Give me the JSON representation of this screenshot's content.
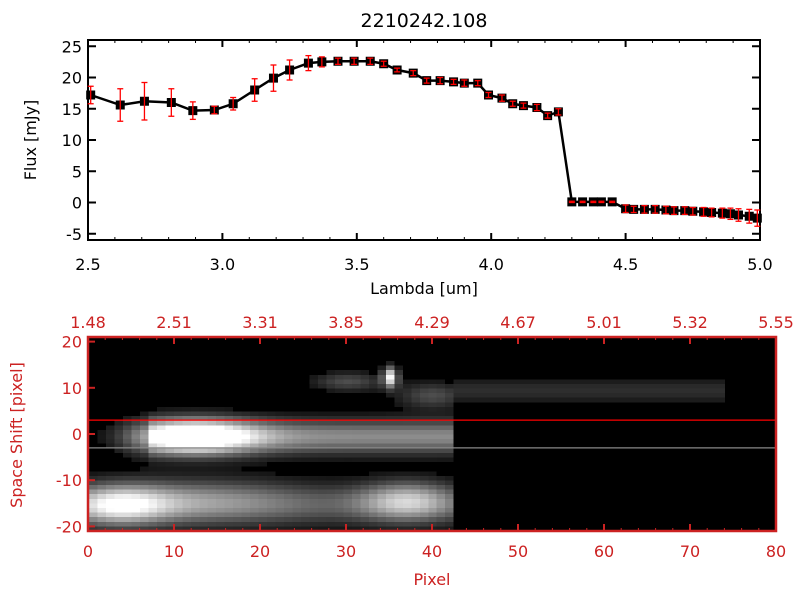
{
  "chart_data": [
    {
      "type": "line",
      "title": "2210242.108",
      "xlabel": "Lambda [um]",
      "ylabel": "Flux [mJy]",
      "xlim": [
        2.5,
        5.0
      ],
      "ylim": [
        -6,
        26
      ],
      "xticks": [
        "2.5",
        "3.0",
        "3.5",
        "4.0",
        "4.5",
        "5.0"
      ],
      "xtick_values": [
        2.5,
        3.0,
        3.5,
        4.0,
        4.5,
        5.0
      ],
      "yticks": [
        "-5",
        "0",
        "5",
        "10",
        "15",
        "20",
        "25"
      ],
      "ytick_values": [
        -5,
        0,
        5,
        10,
        15,
        20,
        25
      ],
      "line_color": "#000000",
      "error_color": "#ff0000",
      "x": [
        2.51,
        2.62,
        2.71,
        2.81,
        2.89,
        2.97,
        3.04,
        3.12,
        3.19,
        3.25,
        3.32,
        3.37,
        3.43,
        3.49,
        3.55,
        3.6,
        3.65,
        3.71,
        3.76,
        3.81,
        3.86,
        3.9,
        3.95,
        3.99,
        4.04,
        4.08,
        4.12,
        4.17,
        4.21,
        4.25,
        4.3,
        4.34,
        4.38,
        4.41,
        4.45,
        4.5,
        4.53,
        4.57,
        4.61,
        4.65,
        4.68,
        4.72,
        4.75,
        4.79,
        4.82,
        4.86,
        4.89,
        4.92,
        4.96,
        4.99
      ],
      "y": [
        17.2,
        15.6,
        16.2,
        16.0,
        14.7,
        14.8,
        15.8,
        18.0,
        19.9,
        21.2,
        22.3,
        22.5,
        22.6,
        22.6,
        22.6,
        22.2,
        21.2,
        20.7,
        19.5,
        19.5,
        19.3,
        19.1,
        19.1,
        17.2,
        16.7,
        15.8,
        15.5,
        15.2,
        13.9,
        14.5,
        0.1,
        0.1,
        0.1,
        0.1,
        0.1,
        -1.0,
        -1.1,
        -1.1,
        -1.1,
        -1.2,
        -1.3,
        -1.3,
        -1.4,
        -1.5,
        -1.6,
        -1.7,
        -1.8,
        -2.0,
        -2.2,
        -2.5
      ],
      "yerr": [
        1.4,
        2.6,
        3.0,
        2.2,
        1.4,
        0.6,
        1.0,
        1.8,
        2.1,
        1.6,
        1.2,
        0.8,
        0.5,
        0.5,
        0.5,
        0.4,
        0.3,
        0.4,
        0.4,
        0.5,
        0.4,
        0.5,
        0.4,
        0.4,
        0.5,
        0.4,
        0.4,
        0.5,
        0.4,
        0.5,
        0.1,
        0.1,
        0.1,
        0.1,
        0.1,
        0.6,
        0.5,
        0.6,
        0.6,
        0.6,
        0.6,
        0.6,
        0.6,
        0.7,
        0.7,
        0.8,
        0.9,
        1.0,
        1.1,
        1.3
      ]
    },
    {
      "type": "heatmap",
      "xlabel": "Pixel",
      "ylabel": "Space Shift [pixel]",
      "xlim": [
        0,
        80
      ],
      "ylim": [
        -21,
        21
      ],
      "xticks": [
        "0",
        "10",
        "20",
        "30",
        "40",
        "50",
        "60",
        "70",
        "80"
      ],
      "xtick_values": [
        0,
        10,
        20,
        30,
        40,
        50,
        60,
        70,
        80
      ],
      "yticks": [
        "-20",
        "-10",
        "0",
        "10",
        "20"
      ],
      "ytick_values": [
        -20,
        -10,
        0,
        10,
        20
      ],
      "top_xticks": [
        "1.48",
        "2.51",
        "3.31",
        "3.85",
        "4.29",
        "4.67",
        "5.01",
        "5.32",
        "5.55"
      ],
      "axis_color": "#cc2222",
      "guide_lines": [
        {
          "y": 3,
          "color": "#ff0000"
        },
        {
          "y": -3,
          "color": "#888888"
        }
      ],
      "colormap": "grayscale"
    }
  ]
}
